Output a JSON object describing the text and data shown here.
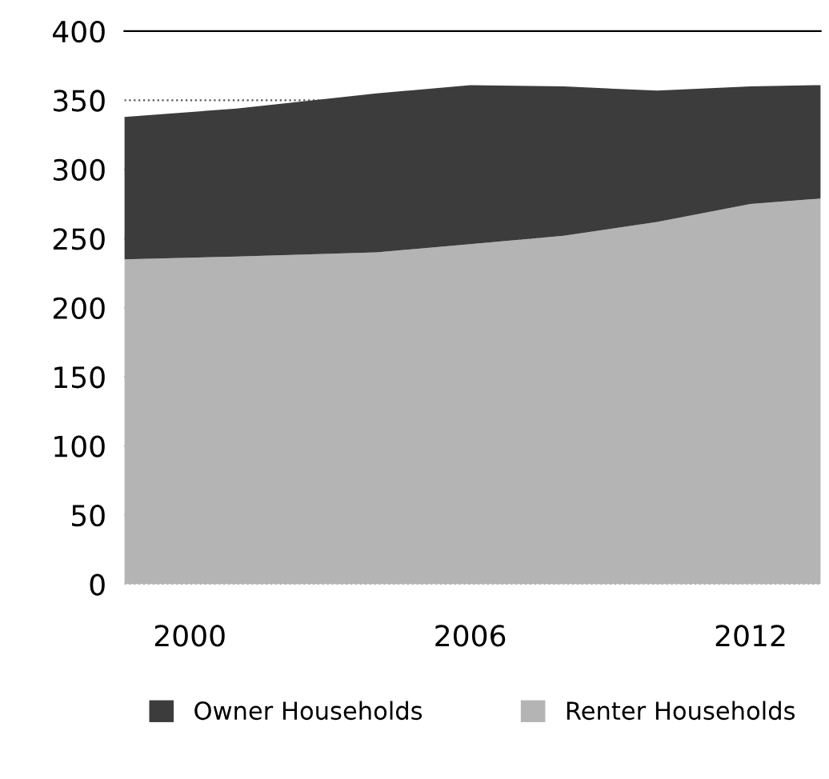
{
  "chart_data": {
    "type": "area",
    "stacked": true,
    "x": [
      1998.6,
      2001,
      2004,
      2006,
      2008,
      2010,
      2012,
      2013.5
    ],
    "series": [
      {
        "name": "Renter Households",
        "color": "#b4b4b4",
        "values": [
          235,
          237,
          240,
          246,
          252,
          262,
          275,
          279
        ]
      },
      {
        "name": "Owner Households",
        "color": "#3c3c3c",
        "values": [
          103,
          107,
          115,
          115,
          108,
          95,
          85,
          82
        ]
      }
    ],
    "xlim": [
      1998.6,
      2013.5
    ],
    "xticks": [
      2000,
      2006,
      2012
    ],
    "ylim": [
      0,
      400
    ],
    "yticks": [
      0,
      50,
      100,
      150,
      200,
      250,
      300,
      350,
      400
    ],
    "grid": "y",
    "legend": "bottom"
  }
}
